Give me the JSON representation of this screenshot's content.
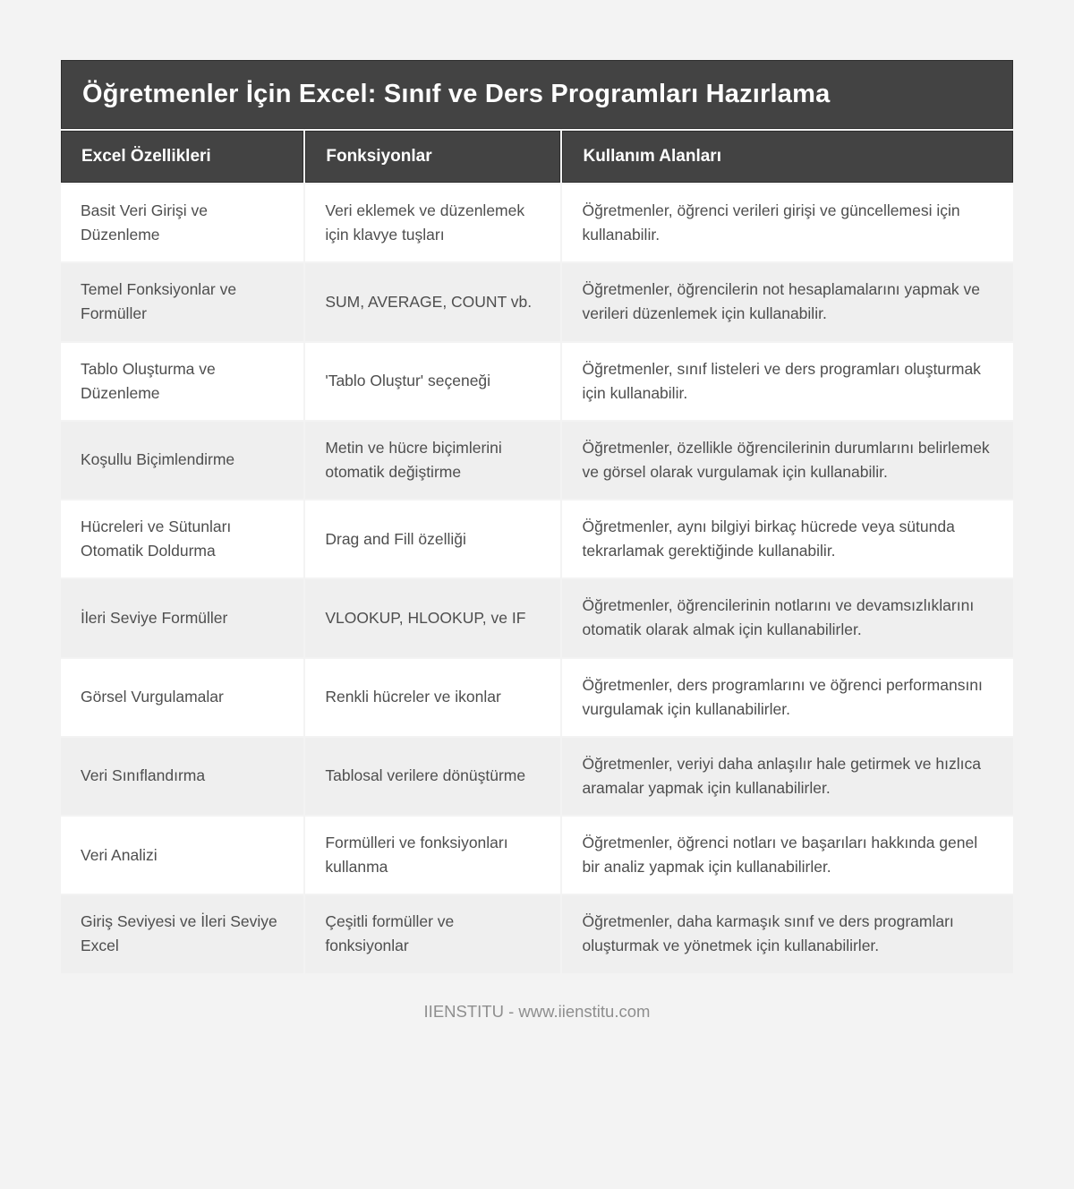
{
  "page": {
    "background": "#f3f3f3",
    "footer_credit": "IIENSTITU - www.iienstitu.com"
  },
  "colors": {
    "header_bg": "#434343",
    "header_border": "#2e2e2e",
    "header_text": "#ffffff",
    "body_text": "#4e4e4e",
    "row_bg": "#ffffff",
    "row_alt_bg": "#efefef"
  },
  "table": {
    "title": "Öğretmenler İçin Excel: Sınıf ve Ders Programları Hazırlama",
    "columns": [
      "Excel Özellikleri",
      "Fonksiyonlar",
      "Kullanım Alanları"
    ],
    "rows": [
      [
        "Basit Veri Girişi ve Düzenleme",
        "Veri eklemek ve düzenlemek için klavye tuşları",
        "Öğretmenler, öğrenci verileri girişi ve güncellemesi için kullanabilir."
      ],
      [
        "Temel Fonksiyonlar ve Formüller",
        "SUM, AVERAGE, COUNT vb.",
        "Öğretmenler, öğrencilerin not hesaplamalarını yapmak ve verileri düzenlemek için kullanabilir."
      ],
      [
        "Tablo Oluşturma ve Düzenleme",
        "'Tablo Oluştur' seçeneği",
        "Öğretmenler, sınıf listeleri ve ders programları oluşturmak için kullanabilir."
      ],
      [
        "Koşullu Biçimlendirme",
        "Metin ve hücre biçimlerini otomatik değiştirme",
        "Öğretmenler, özellikle öğrencilerinin durumlarını belirlemek ve görsel olarak vurgulamak için kullanabilir."
      ],
      [
        "Hücreleri ve Sütunları Otomatik Doldurma",
        "Drag and Fill özelliği",
        "Öğretmenler, aynı bilgiyi birkaç hücrede veya sütunda tekrarlamak gerektiğinde kullanabilir."
      ],
      [
        "İleri Seviye Formüller",
        "VLOOKUP, HLOOKUP, ve IF",
        "Öğretmenler, öğrencilerinin notlarını ve devamsızlıklarını otomatik olarak almak için kullanabilirler."
      ],
      [
        "Görsel Vurgulamalar",
        "Renkli hücreler ve ikonlar",
        "Öğretmenler, ders programlarını ve öğrenci performansını vurgulamak için kullanabilirler."
      ],
      [
        "Veri Sınıflandırma",
        "Tablosal verilere dönüştürme",
        "Öğretmenler, veriyi daha anlaşılır hale getirmek ve hızlıca aramalar yapmak için kullanabilirler."
      ],
      [
        "Veri Analizi",
        "Formülleri ve fonksiyonları kullanma",
        "Öğretmenler, öğrenci notları ve başarıları hakkında genel bir analiz yapmak için kullanabilirler."
      ],
      [
        "Giriş Seviyesi ve İleri Seviye Excel",
        "Çeşitli formüller ve fonksiyonlar",
        "Öğretmenler, daha karmaşık sınıf ve ders programları oluşturmak ve yönetmek için kullanabilirler."
      ]
    ]
  }
}
